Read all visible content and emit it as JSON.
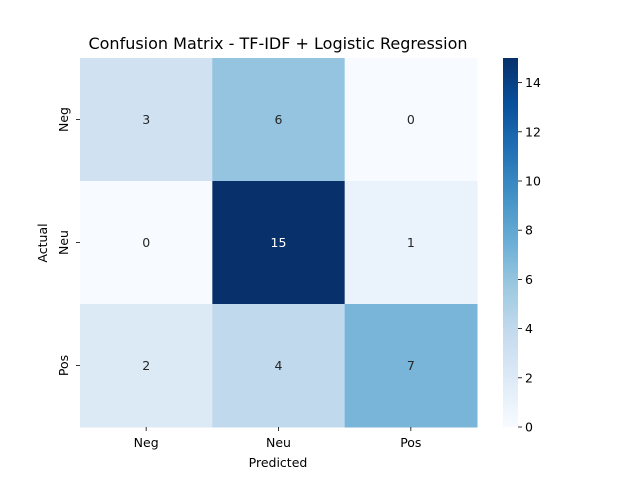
{
  "chart_data": {
    "type": "heatmap",
    "title": "Confusion Matrix - TF-IDF + Logistic Regression",
    "xlabel": "Predicted",
    "ylabel": "Actual",
    "x_categories": [
      "Neg",
      "Neu",
      "Pos"
    ],
    "y_categories": [
      "Neg",
      "Neu",
      "Pos"
    ],
    "values": [
      [
        3,
        6,
        0
      ],
      [
        0,
        15,
        1
      ],
      [
        2,
        4,
        7
      ]
    ],
    "colormap": "Blues",
    "colorbar": {
      "range": [
        0,
        15
      ],
      "ticks": [
        0,
        2,
        4,
        6,
        8,
        10,
        12,
        14
      ]
    },
    "grid": false
  }
}
